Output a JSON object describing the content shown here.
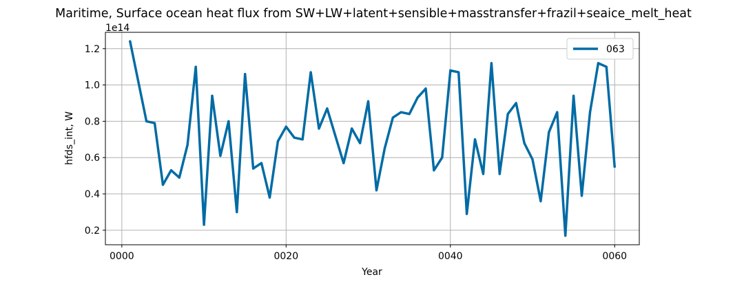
{
  "chart_data": {
    "type": "line",
    "title": "Maritime, Surface ocean heat flux from SW+LW+latent+sensible+masstransfer+frazil+seaice_melt_heat",
    "xlabel": "Year",
    "ylabel": "hfds_int, W",
    "y_offset_label": "1e14",
    "y_multiplier": 100000000000000.0,
    "xlim": [
      -2,
      63
    ],
    "ylim": [
      0.12,
      1.29
    ],
    "x_ticks": [
      0,
      20,
      40,
      60
    ],
    "x_tick_labels": [
      "0000",
      "0020",
      "0040",
      "0060"
    ],
    "y_ticks": [
      0.2,
      0.4,
      0.6,
      0.8,
      1.0,
      1.2
    ],
    "y_tick_labels": [
      "0.2",
      "0.4",
      "0.6",
      "0.8",
      "1.0",
      "1.2"
    ],
    "grid": true,
    "legend_position": "top-right",
    "series": [
      {
        "name": "063",
        "color": "#006ba4",
        "x": [
          1,
          2,
          3,
          4,
          5,
          6,
          7,
          8,
          9,
          10,
          11,
          12,
          13,
          14,
          15,
          16,
          17,
          18,
          19,
          20,
          21,
          22,
          23,
          24,
          25,
          26,
          27,
          28,
          29,
          30,
          31,
          32,
          33,
          34,
          35,
          36,
          37,
          38,
          39,
          40,
          41,
          42,
          43,
          44,
          45,
          46,
          47,
          48,
          49,
          50,
          51,
          52,
          53,
          54,
          55,
          56,
          57,
          58,
          59,
          60
        ],
        "values": [
          1.24,
          1.02,
          0.8,
          0.79,
          0.45,
          0.53,
          0.49,
          0.67,
          1.1,
          0.23,
          0.94,
          0.61,
          0.8,
          0.3,
          1.06,
          0.54,
          0.57,
          0.38,
          0.69,
          0.77,
          0.71,
          0.7,
          1.07,
          0.76,
          0.87,
          0.72,
          0.57,
          0.76,
          0.68,
          0.91,
          0.42,
          0.65,
          0.82,
          0.85,
          0.84,
          0.93,
          0.98,
          0.53,
          0.6,
          1.08,
          1.07,
          0.29,
          0.7,
          0.51,
          1.12,
          0.51,
          0.84,
          0.9,
          0.68,
          0.59,
          0.36,
          0.74,
          0.85,
          0.17,
          0.94,
          0.39,
          0.85,
          1.12,
          1.1,
          0.55
        ]
      }
    ]
  }
}
